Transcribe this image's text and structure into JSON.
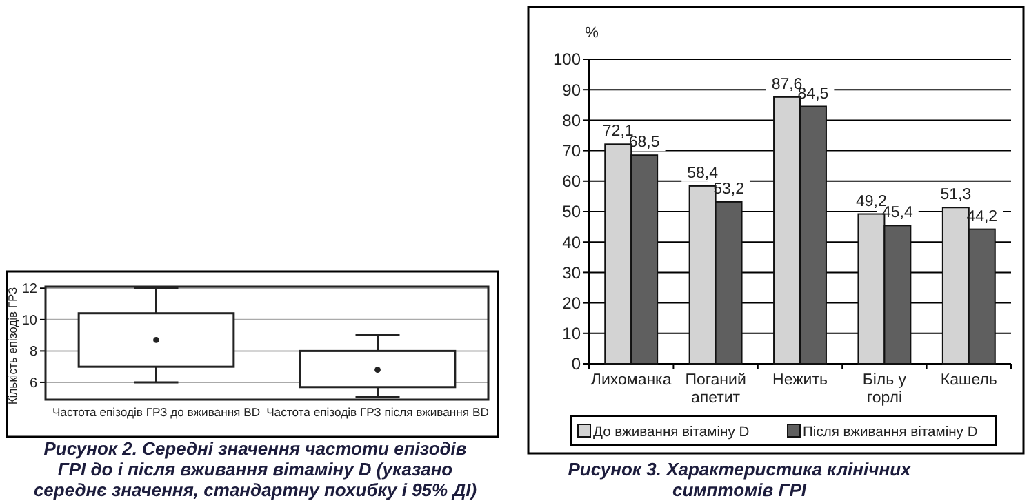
{
  "chart_data": [
    {
      "type": "box",
      "title": "Рисунок 2. Середні значення частоти епізодів ГРІ до і після вживання вітаміну D (указано середнє значення, стандартну похибку і 95% ДІ)",
      "ylabel": "Кількість епізодів ГРЗ",
      "categories": [
        "Частота епізодів ГРЗ до вживання BD",
        "Частота епізодів ГРЗ після вживання BD"
      ],
      "boxes": [
        {
          "low": 6,
          "q1": 7,
          "q3": 10.4,
          "high": 12,
          "mean": 8.7
        },
        {
          "low": 5.1,
          "q1": 5.7,
          "q3": 8,
          "high": 9,
          "mean": 6.8
        }
      ],
      "ylim": [
        4.9,
        12.1
      ],
      "yticks": [
        6,
        8,
        10,
        12
      ],
      "grid": "y"
    },
    {
      "type": "bar",
      "title": "Рисунок 3. Характеристика клінічних симптомів ГРІ",
      "ylabel": "%",
      "categories": [
        "Лихоманка",
        "Поганий апетит",
        "Нежить",
        "Біль у горлі",
        "Кашель"
      ],
      "series": [
        {
          "name": "До вживання вітаміну D",
          "color": "#d3d3d3",
          "values": [
            72.1,
            58.4,
            87.6,
            49.2,
            51.3
          ],
          "value_labels": [
            "72,1",
            "58,4",
            "87,6",
            "49,2",
            "51,3"
          ]
        },
        {
          "name": "Після вживання вітаміну D",
          "color": "#5f5f5f",
          "values": [
            68.5,
            53.2,
            84.5,
            45.4,
            44.2
          ],
          "value_labels": [
            "68,5",
            "53,2",
            "84,5",
            "45,4",
            "44,2"
          ]
        }
      ],
      "ylim": [
        0,
        100
      ],
      "yticks": [
        0,
        10,
        20,
        30,
        40,
        50,
        60,
        70,
        80,
        90,
        100
      ],
      "grid": "y",
      "legend": "bottom"
    }
  ]
}
